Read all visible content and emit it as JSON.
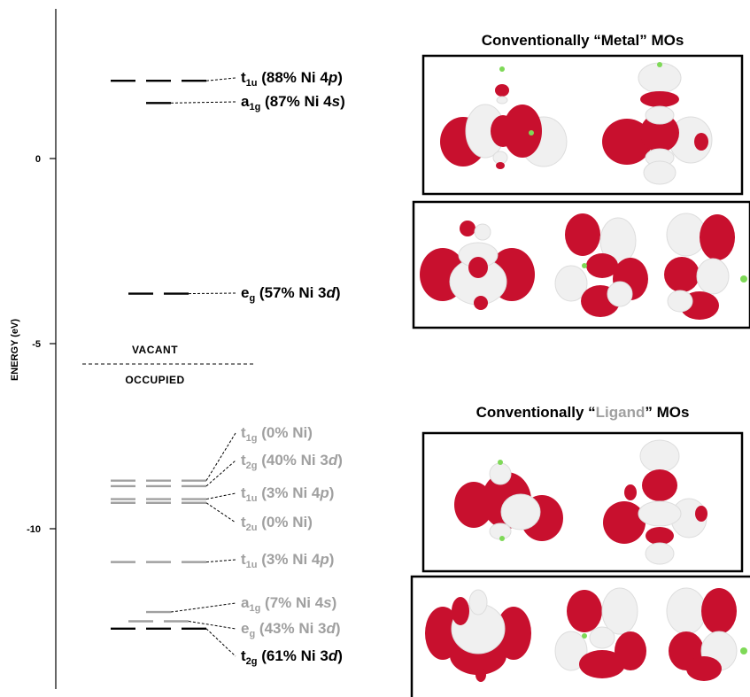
{
  "axis": {
    "title": "ENERGY (eV)",
    "ticks": [
      {
        "value": 0,
        "label": "0"
      },
      {
        "value": -5,
        "label": "-5"
      },
      {
        "value": -10,
        "label": "-10"
      }
    ]
  },
  "regions": {
    "vacant_label": "VACANT",
    "occupied_label": "OCCUPIED",
    "boundary_energy": -5.55
  },
  "panels": {
    "metal_title": {
      "before": "Conventionally “",
      "highlight": "Metal",
      "after": "” MOs"
    },
    "ligand_title": {
      "before": "Conventionally “",
      "highlight": "Ligand",
      "after": "” MOs"
    }
  },
  "colors": {
    "occupied_metal": "#000000",
    "ligand": "#a0a0a0",
    "lobe_red": "#c8102e",
    "lobe_white": "#f0f0f0",
    "atom_green": "#7ed957"
  },
  "chart_data": {
    "type": "energy-level-diagram",
    "y_unit": "eV",
    "ylim": [
      -14.3,
      3.9
    ],
    "levels": [
      {
        "sym": "t",
        "sub": "1u",
        "text": "(88% Ni 4",
        "ital": "p",
        "tail": ")",
        "energy": 2.1,
        "degeneracy": 3,
        "style": "metal"
      },
      {
        "sym": "a",
        "sub": "1g",
        "text": "(87% Ni 4",
        "ital": "s",
        "tail": ")",
        "energy": 1.5,
        "degeneracy": 1,
        "style": "metal"
      },
      {
        "sym": "e",
        "sub": "g",
        "text": "(57% Ni 3",
        "ital": "d",
        "tail": ")",
        "energy": -3.65,
        "degeneracy": 2,
        "style": "metal"
      },
      {
        "sym": "t",
        "sub": "1g",
        "text": "(0% Ni)",
        "ital": "",
        "tail": "",
        "energy": -8.7,
        "degeneracy": 3,
        "style": "ligand"
      },
      {
        "sym": "t",
        "sub": "2g",
        "text": "(40% Ni 3",
        "ital": "d",
        "tail": ")",
        "energy": -8.85,
        "degeneracy": 3,
        "style": "ligand"
      },
      {
        "sym": "t",
        "sub": "1u",
        "text": "(3% Ni 4",
        "ital": "p",
        "tail": ")",
        "energy": -9.2,
        "degeneracy": 3,
        "style": "ligand"
      },
      {
        "sym": "t",
        "sub": "2u",
        "text": "(0% Ni)",
        "ital": "",
        "tail": "",
        "energy": -9.3,
        "degeneracy": 3,
        "style": "ligand"
      },
      {
        "sym": "t",
        "sub": "1u",
        "text": "(3% Ni 4",
        "ital": "p",
        "tail": ")",
        "energy": -10.9,
        "degeneracy": 3,
        "style": "ligand"
      },
      {
        "sym": "a",
        "sub": "1g",
        "text": "(7% Ni 4",
        "ital": "s",
        "tail": ")",
        "energy": -12.25,
        "degeneracy": 1,
        "style": "ligand"
      },
      {
        "sym": "e",
        "sub": "g",
        "text": "(43% Ni 3",
        "ital": "d",
        "tail": ")",
        "energy": -12.5,
        "degeneracy": 2,
        "style": "ligand"
      },
      {
        "sym": "t",
        "sub": "2g",
        "text": "(61% Ni 3",
        "ital": "d",
        "tail": ")",
        "energy": -12.7,
        "degeneracy": 3,
        "style": "metal"
      }
    ]
  }
}
